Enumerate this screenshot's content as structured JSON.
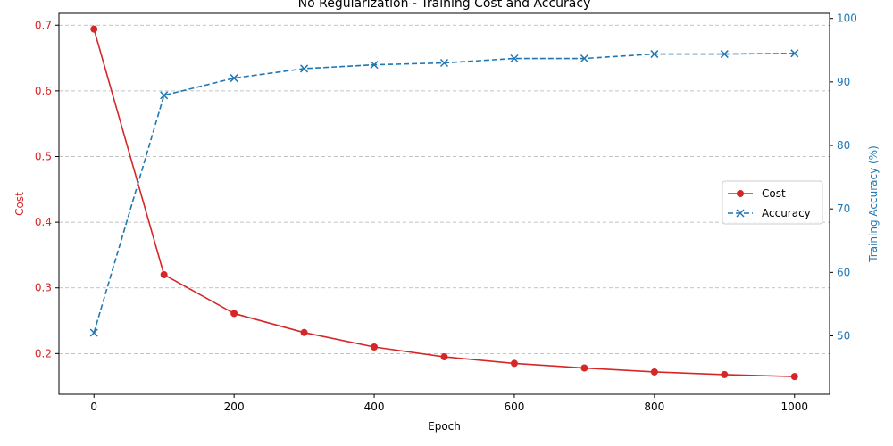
{
  "chart_data": {
    "type": "line",
    "title": "No Regularization - Training Cost and Accuracy",
    "xlabel": "Epoch",
    "ylabel_left": "Cost",
    "ylabel_right": "Training Accuracy (%)",
    "x": [
      0,
      100,
      200,
      300,
      400,
      500,
      600,
      700,
      800,
      900,
      1000
    ],
    "xlim": [
      -50,
      1050
    ],
    "ylim_left": [
      0.138,
      0.718
    ],
    "ylim_right": [
      40.8,
      100.8
    ],
    "xticks": [
      0,
      200,
      400,
      600,
      800,
      1000
    ],
    "yticks_left": [
      0.2,
      0.3,
      0.4,
      0.5,
      0.6,
      0.7
    ],
    "yticks_right": [
      50,
      60,
      70,
      80,
      90,
      100
    ],
    "grid": "horizontal-dashed",
    "legend_position": "center-right",
    "series": [
      {
        "name": "Cost",
        "axis": "left",
        "color": "#d62728",
        "linestyle": "solid",
        "marker": "circle",
        "values": [
          0.694,
          0.32,
          0.261,
          0.232,
          0.21,
          0.195,
          0.185,
          0.178,
          0.172,
          0.168,
          0.165
        ]
      },
      {
        "name": "Accuracy",
        "axis": "right",
        "color": "#1f77b4",
        "linestyle": "dashed",
        "marker": "x",
        "values": [
          50.5,
          87.9,
          90.6,
          92.1,
          92.7,
          93.0,
          93.7,
          93.7,
          94.4,
          94.4,
          94.5
        ]
      }
    ]
  }
}
